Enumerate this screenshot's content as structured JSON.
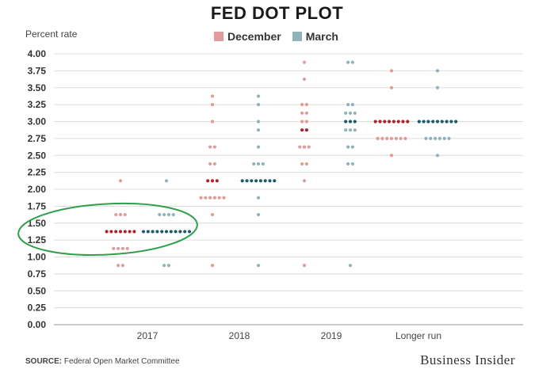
{
  "chart_data": {
    "type": "scatter",
    "title": "FED DOT PLOT",
    "ylabel": "Percent rate",
    "ylim": [
      0,
      4
    ],
    "yticks": [
      "0.00",
      "0.25",
      "0.50",
      "0.75",
      "1.00",
      "1.25",
      "1.50",
      "1.75",
      "2.00",
      "2.25",
      "2.50",
      "2.75",
      "3.00",
      "3.25",
      "3.50",
      "3.75",
      "4.00"
    ],
    "categories": [
      "2017",
      "2018",
      "2019",
      "Longer run"
    ],
    "grid": true,
    "legend_position": "top-center",
    "series": [
      {
        "name": "December",
        "color": "#e29a9a",
        "median_color": "#a8232a",
        "groups": [
          {
            "category": "2017",
            "dots": [
              {
                "y": 2.125,
                "count": 1
              },
              {
                "y": 1.625,
                "count": 3
              },
              {
                "y": 1.375,
                "count": 7,
                "median": true
              },
              {
                "y": 1.125,
                "count": 4
              },
              {
                "y": 0.875,
                "count": 2
              }
            ]
          },
          {
            "category": "2018",
            "dots": [
              {
                "y": 3.375,
                "count": 1
              },
              {
                "y": 3.25,
                "count": 1
              },
              {
                "y": 3.0,
                "count": 1
              },
              {
                "y": 2.625,
                "count": 2
              },
              {
                "y": 2.375,
                "count": 2
              },
              {
                "y": 2.125,
                "count": 3,
                "median": true
              },
              {
                "y": 1.875,
                "count": 6
              },
              {
                "y": 1.625,
                "count": 1
              },
              {
                "y": 0.875,
                "count": 1
              }
            ]
          },
          {
            "category": "2019",
            "dots": [
              {
                "y": 3.875,
                "count": 1
              },
              {
                "y": 3.625,
                "count": 1
              },
              {
                "y": 3.25,
                "count": 2
              },
              {
                "y": 3.125,
                "count": 2
              },
              {
                "y": 3.0,
                "count": 2
              },
              {
                "y": 2.875,
                "count": 2,
                "median": true
              },
              {
                "y": 2.625,
                "count": 3
              },
              {
                "y": 2.375,
                "count": 2
              },
              {
                "y": 2.125,
                "count": 1
              },
              {
                "y": 0.875,
                "count": 1
              }
            ]
          },
          {
            "category": "Longer run",
            "dots": [
              {
                "y": 3.75,
                "count": 1
              },
              {
                "y": 3.5,
                "count": 1
              },
              {
                "y": 3.0,
                "count": 8,
                "median": true
              },
              {
                "y": 2.75,
                "count": 7
              },
              {
                "y": 2.5,
                "count": 1
              }
            ]
          }
        ]
      },
      {
        "name": "March",
        "color": "#8fb3b9",
        "median_color": "#1e5a6b",
        "groups": [
          {
            "category": "2017",
            "dots": [
              {
                "y": 2.125,
                "count": 1
              },
              {
                "y": 1.625,
                "count": 4
              },
              {
                "y": 1.375,
                "count": 11,
                "median": true
              },
              {
                "y": 0.875,
                "count": 2
              }
            ]
          },
          {
            "category": "2018",
            "dots": [
              {
                "y": 3.375,
                "count": 1
              },
              {
                "y": 3.25,
                "count": 1
              },
              {
                "y": 3.0,
                "count": 1
              },
              {
                "y": 2.875,
                "count": 1
              },
              {
                "y": 2.625,
                "count": 1
              },
              {
                "y": 2.375,
                "count": 3
              },
              {
                "y": 2.125,
                "count": 8,
                "median": true
              },
              {
                "y": 1.875,
                "count": 1
              },
              {
                "y": 1.625,
                "count": 1
              },
              {
                "y": 0.875,
                "count": 1
              }
            ]
          },
          {
            "category": "2019",
            "dots": [
              {
                "y": 3.875,
                "count": 2
              },
              {
                "y": 3.25,
                "count": 2
              },
              {
                "y": 3.125,
                "count": 3
              },
              {
                "y": 3.0,
                "count": 3,
                "median": true
              },
              {
                "y": 2.875,
                "count": 3
              },
              {
                "y": 2.625,
                "count": 2
              },
              {
                "y": 2.375,
                "count": 2
              },
              {
                "y": 0.875,
                "count": 1
              }
            ]
          },
          {
            "category": "Longer run",
            "dots": [
              {
                "y": 3.75,
                "count": 1
              },
              {
                "y": 3.5,
                "count": 1
              },
              {
                "y": 3.0,
                "count": 9,
                "median": true
              },
              {
                "y": 2.75,
                "count": 6
              },
              {
                "y": 2.5,
                "count": 1
              }
            ]
          }
        ]
      }
    ],
    "annotations": [
      {
        "type": "ellipse",
        "color": "#2ea04a",
        "category": "2017",
        "y": 1.375
      }
    ]
  },
  "footer": {
    "source_label": "SOURCE:",
    "source_text": " Federal Open Market Committee",
    "brand": "Business Insider"
  }
}
